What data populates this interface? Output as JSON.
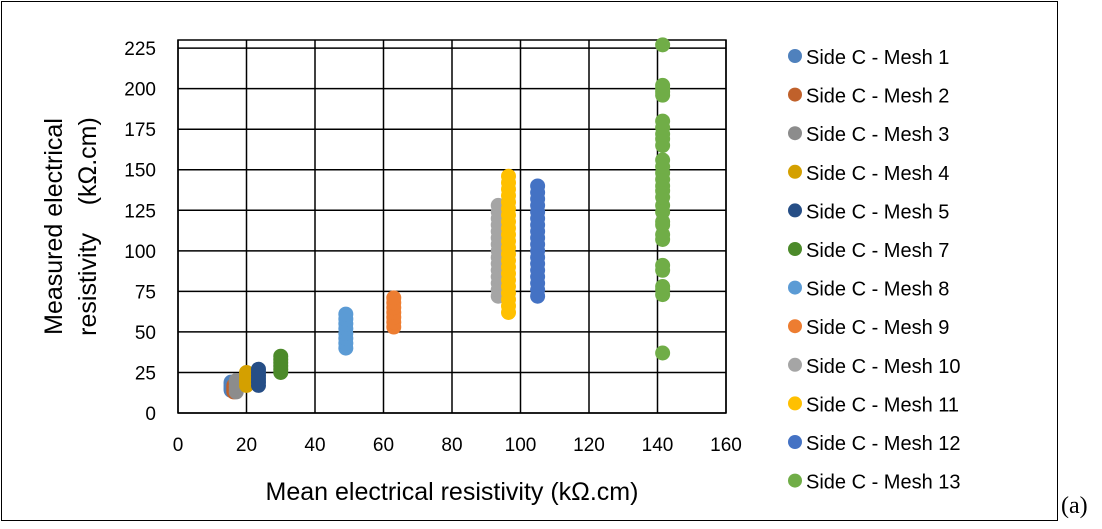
{
  "panel_label": "(a)",
  "chart_data": {
    "type": "scatter",
    "title": "",
    "xlabel": "Mean electrical resistivity (kΩ.cm)",
    "ylabel_lines": [
      "Measured electrical",
      "resistivity    (kΩ.cm)"
    ],
    "xlim": [
      0,
      160
    ],
    "ylim": [
      0,
      230
    ],
    "x_ticks": [
      0,
      20,
      40,
      60,
      80,
      100,
      120,
      140,
      160
    ],
    "y_ticks": [
      0,
      25,
      50,
      75,
      100,
      125,
      150,
      175,
      200,
      225
    ],
    "grid": true,
    "legend_position": "right",
    "series": [
      {
        "name": "Side C - Mesh 1",
        "color": "#4F81BD",
        "x": 15.5,
        "y": [
          14,
          15,
          16,
          17,
          18,
          19
        ]
      },
      {
        "name": "Side C - Mesh 2",
        "color": "#C0612B",
        "x": 16.3,
        "y": [
          13,
          14,
          15,
          16,
          17
        ]
      },
      {
        "name": "Side C - Mesh 3",
        "color": "#8C8C8C",
        "x": 17.0,
        "y": [
          13,
          15,
          17,
          19,
          20
        ]
      },
      {
        "name": "Side C - Mesh 4",
        "color": "#D4A000",
        "x": 20.0,
        "y": [
          17,
          19,
          21,
          23,
          25
        ]
      },
      {
        "name": "Side C - Mesh 5",
        "color": "#264E86",
        "x": 23.5,
        "y": [
          17,
          19,
          21,
          23,
          25,
          27
        ]
      },
      {
        "name": "Side C - Mesh 7",
        "color": "#4C8A2A",
        "x": 30.0,
        "y": [
          25,
          27,
          29,
          31,
          33,
          35
        ]
      },
      {
        "name": "Side C - Mesh 8",
        "color": "#5B9BD5",
        "x": 49.0,
        "y": [
          40,
          43,
          46,
          49,
          52,
          55,
          58,
          61
        ]
      },
      {
        "name": "Side C - Mesh 9",
        "color": "#ED7D31",
        "x": 63.0,
        "y": [
          53,
          56,
          59,
          62,
          65,
          68,
          71
        ]
      },
      {
        "name": "Side C - Mesh 10",
        "color": "#A5A5A5",
        "x": 93.5,
        "y": [
          72,
          76,
          80,
          84,
          88,
          92,
          96,
          100,
          104,
          108,
          112,
          116,
          120,
          124,
          128
        ]
      },
      {
        "name": "Side C - Mesh 11",
        "color": "#FFC000",
        "x": 96.5,
        "y": [
          62,
          66,
          70,
          74,
          78,
          82,
          86,
          90,
          94,
          98,
          102,
          106,
          110,
          114,
          118,
          122,
          126,
          130,
          134,
          138,
          142,
          146
        ]
      },
      {
        "name": "Side C - Mesh 12",
        "color": "#4472C4",
        "x": 105.0,
        "y": [
          72,
          76,
          80,
          84,
          88,
          92,
          96,
          100,
          104,
          108,
          112,
          116,
          120,
          124,
          128,
          132,
          136,
          140
        ]
      },
      {
        "name": "Side C - Mesh 13",
        "color": "#70AD47",
        "x": 141.5,
        "y": [
          37,
          73,
          76,
          78,
          88,
          91,
          107,
          110,
          116,
          118,
          124,
          128,
          133,
          137,
          140,
          144,
          148,
          152,
          156,
          165,
          169,
          172,
          176,
          180,
          196,
          198,
          200,
          202,
          227
        ]
      }
    ]
  }
}
